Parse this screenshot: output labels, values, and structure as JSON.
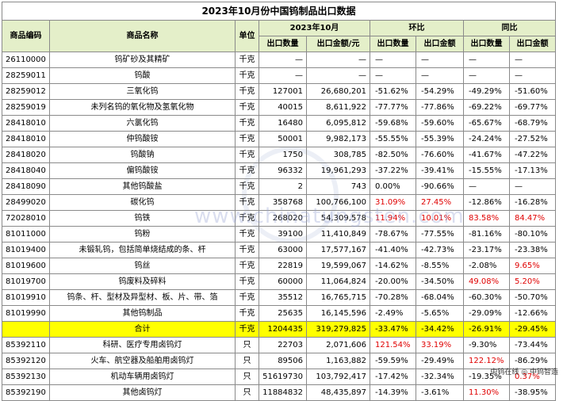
{
  "title": "2023年10月份中国钨制品出口数据",
  "headers": {
    "code": "商品编码",
    "name": "商品名称",
    "unit": "单位",
    "period": "2023年10月",
    "qoq": "环比",
    "yoy": "同比",
    "qty": "出口数量",
    "amount": "出口金额/元",
    "qty2": "出口数量",
    "amount2": "出口金额",
    "qty3": "出口数量",
    "amount3": "出口金额"
  },
  "rows": [
    {
      "code": "26110000",
      "name": "钨矿砂及其精矿",
      "unit": "千克",
      "qty": "—",
      "amount": "—",
      "qoq_qty": "—",
      "qoq_amt": "—",
      "yoy_qty": "—",
      "yoy_amt": "—"
    },
    {
      "code": "28259011",
      "name": "钨酸",
      "unit": "千克",
      "qty": "—",
      "amount": "—",
      "qoq_qty": "—",
      "qoq_amt": "—",
      "yoy_qty": "—",
      "yoy_amt": "—"
    },
    {
      "code": "28259012",
      "name": "三氧化钨",
      "unit": "千克",
      "qty": "127001",
      "amount": "26,680,201",
      "qoq_qty": "-51.62%",
      "qoq_amt": "-54.29%",
      "yoy_qty": "-49.29%",
      "yoy_amt": "-51.60%"
    },
    {
      "code": "28259019",
      "name": "未列名钨的氧化物及氢氧化物",
      "unit": "千克",
      "qty": "40015",
      "amount": "8,611,922",
      "qoq_qty": "-77.77%",
      "qoq_amt": "-77.86%",
      "yoy_qty": "-69.22%",
      "yoy_amt": "-69.77%"
    },
    {
      "code": "28418010",
      "name": "六氯化钨",
      "unit": "千克",
      "qty": "16480",
      "amount": "6,095,812",
      "qoq_qty": "-59.68%",
      "qoq_amt": "-59.60%",
      "yoy_qty": "-65.67%",
      "yoy_amt": "-68.79%"
    },
    {
      "code": "28418010",
      "name": "仲钨酸铵",
      "unit": "千克",
      "qty": "50001",
      "amount": "9,982,173",
      "qoq_qty": "-55.55%",
      "qoq_amt": "-55.39%",
      "yoy_qty": "-24.24%",
      "yoy_amt": "-27.52%"
    },
    {
      "code": "28418020",
      "name": "钨酸钠",
      "unit": "千克",
      "qty": "1750",
      "amount": "308,785",
      "qoq_qty": "-82.50%",
      "qoq_amt": "-76.60%",
      "yoy_qty": "-41.67%",
      "yoy_amt": "-47.22%"
    },
    {
      "code": "28418040",
      "name": "偏钨酸铵",
      "unit": "千克",
      "qty": "96332",
      "amount": "19,961,293",
      "qoq_qty": "-37.22%",
      "qoq_amt": "-39.41%",
      "yoy_qty": "-15.55%",
      "yoy_amt": "-17.13%"
    },
    {
      "code": "28418090",
      "name": "其他钨酸盐",
      "unit": "千克",
      "qty": "2",
      "amount": "743",
      "qoq_qty": "0.00%",
      "qoq_amt": "-90.66%",
      "yoy_qty": "—",
      "yoy_amt": "—"
    },
    {
      "code": "28499020",
      "name": "碳化钨",
      "unit": "千克",
      "qty": "358768",
      "amount": "100,766,100",
      "qoq_qty": "31.09%",
      "qoq_amt": "27.45%",
      "yoy_qty": "-12.86%",
      "yoy_amt": "-16.28%"
    },
    {
      "code": "72028010",
      "name": "钨铁",
      "unit": "千克",
      "qty": "268020",
      "amount": "54,309,578",
      "qoq_qty": "11.94%",
      "qoq_amt": "10.01%",
      "yoy_qty": "83.58%",
      "yoy_amt": "84.47%"
    },
    {
      "code": "81011000",
      "name": "钨粉",
      "unit": "千克",
      "qty": "39100",
      "amount": "11,410,849",
      "qoq_qty": "-78.67%",
      "qoq_amt": "-77.55%",
      "yoy_qty": "-81.16%",
      "yoy_amt": "-80.10%"
    },
    {
      "code": "81019400",
      "name": "未锻轧钨，包括简单烧结成的条、杆",
      "unit": "千克",
      "qty": "63000",
      "amount": "17,577,167",
      "qoq_qty": "-41.40%",
      "qoq_amt": "-42.73%",
      "yoy_qty": "-23.17%",
      "yoy_amt": "-23.38%"
    },
    {
      "code": "81019600",
      "name": "钨丝",
      "unit": "千克",
      "qty": "22819",
      "amount": "19,599,067",
      "qoq_qty": "-14.62%",
      "qoq_amt": "-8.55%",
      "yoy_qty": "-2.08%",
      "yoy_amt": "9.65%"
    },
    {
      "code": "81019700",
      "name": "钨废料及碎料",
      "unit": "千克",
      "qty": "60000",
      "amount": "11,064,824",
      "qoq_qty": "-20.00%",
      "qoq_amt": "-34.50%",
      "yoy_qty": "49.08%",
      "yoy_amt": "5.20%"
    },
    {
      "code": "81019910",
      "name": "钨条、杆、型材及异型材、板、片、带、箔",
      "unit": "千克",
      "qty": "35512",
      "amount": "16,765,715",
      "qoq_qty": "-70.28%",
      "qoq_amt": "-68.04%",
      "yoy_qty": "-60.30%",
      "yoy_amt": "-50.70%"
    },
    {
      "code": "81019990",
      "name": "其他钨制品",
      "unit": "千克",
      "qty": "25635",
      "amount": "16,145,596",
      "qoq_qty": "-2.49%",
      "qoq_amt": "-5.65%",
      "yoy_qty": "-29.09%",
      "yoy_amt": "-12.66%"
    }
  ],
  "total": {
    "code": "",
    "name": "合计",
    "unit": "千克",
    "qty": "1204435",
    "amount": "319,279,825",
    "qoq_qty": "-33.47%",
    "qoq_amt": "-34.42%",
    "yoy_qty": "-26.91%",
    "yoy_amt": "-29.45%"
  },
  "lamp_rows": [
    {
      "code": "85392110",
      "name": "科研、医疗专用卤钨灯",
      "unit": "只",
      "qty": "22703",
      "amount": "2,071,606",
      "qoq_qty": "121.54%",
      "qoq_amt": "33.19%",
      "yoy_qty": "-9.30%",
      "yoy_amt": "-73.44%"
    },
    {
      "code": "85392120",
      "name": "火车、航空器及船舶用卤钨灯",
      "unit": "只",
      "qty": "89506",
      "amount": "1,163,882",
      "qoq_qty": "-59.59%",
      "qoq_amt": "-29.49%",
      "yoy_qty": "122.12%",
      "yoy_amt": "-86.29%"
    },
    {
      "code": "85392130",
      "name": "机动车辆用卤钨灯",
      "unit": "只",
      "qty": "51619730",
      "amount": "103,792,417",
      "qoq_qty": "-17.42%",
      "qoq_amt": "-32.34%",
      "yoy_qty": "-19.35%",
      "yoy_amt": "0.37%"
    },
    {
      "code": "85392190",
      "name": "其他卤钨灯",
      "unit": "只",
      "qty": "11884832",
      "amount": "48,435,897",
      "qoq_qty": "-14.39%",
      "qoq_amt": "-3.61%",
      "yoy_qty": "11.30%",
      "yoy_amt": "-38.95%"
    }
  ],
  "watermark": "www.chinatungsten.com",
  "footer": "中钨在线 ◎ 中钨智造",
  "colors": {
    "header_bg": "#e4efc9",
    "total_bg": "#ffff00",
    "positive": "#e00000"
  }
}
